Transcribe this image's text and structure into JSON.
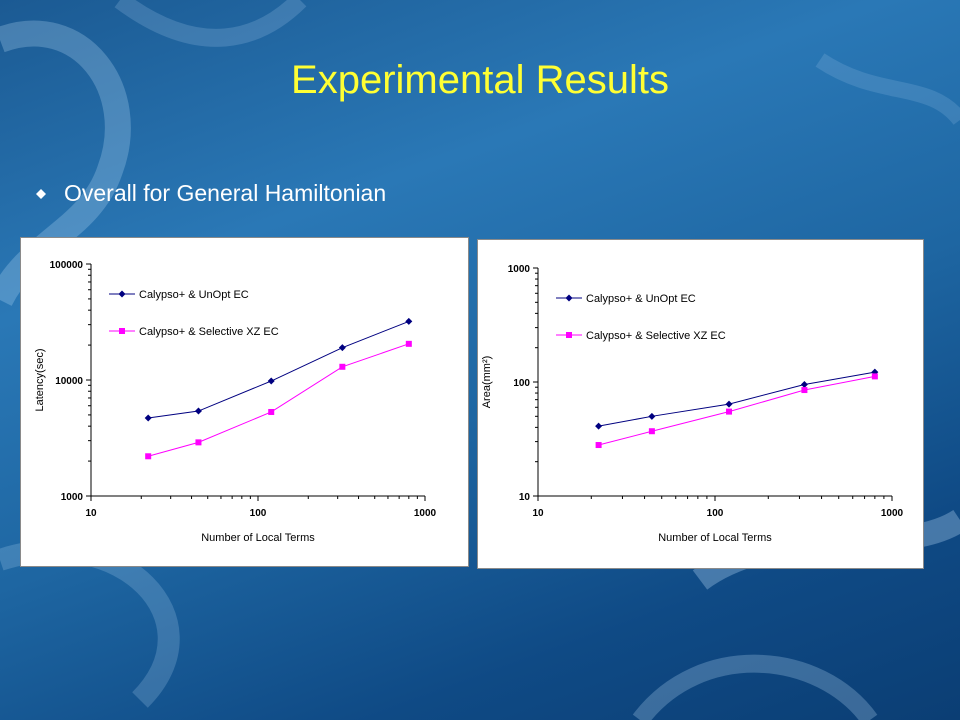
{
  "slide": {
    "title": "Experimental Results",
    "bullet": "Overall for General Hamiltonian"
  },
  "colors": {
    "title": "#ffff33",
    "series_unopt": "#000080",
    "series_selective": "#ff00ff"
  },
  "chart_data": [
    {
      "type": "line",
      "x_scale": "log",
      "y_scale": "log",
      "xlabel": "Number of Local Terms",
      "ylabel": "Latency(sec)",
      "xlim": [
        10,
        1000
      ],
      "ylim": [
        1000,
        100000
      ],
      "x_ticks": [
        "10",
        "100",
        "1000"
      ],
      "y_ticks": [
        "1000",
        "10000",
        "100000"
      ],
      "legend_position": "top-left",
      "grid": false,
      "series": [
        {
          "name": "Calypso+ & UnOpt EC",
          "marker": "diamond",
          "x": [
            22,
            44,
            120,
            320,
            800
          ],
          "values": [
            4700,
            5400,
            9800,
            19000,
            32000
          ]
        },
        {
          "name": "Calypso+ & Selective XZ EC",
          "marker": "square",
          "x": [
            22,
            44,
            120,
            320,
            800
          ],
          "values": [
            2200,
            2900,
            5300,
            13000,
            20500
          ]
        }
      ]
    },
    {
      "type": "line",
      "x_scale": "log",
      "y_scale": "log",
      "xlabel": "Number of Local Terms",
      "ylabel": "Area(mm²)",
      "xlim": [
        10,
        1000
      ],
      "ylim": [
        10,
        1000
      ],
      "x_ticks": [
        "10",
        "100",
        "1000"
      ],
      "y_ticks": [
        "10",
        "100",
        "1000"
      ],
      "legend_position": "top-left",
      "grid": false,
      "series": [
        {
          "name": "Calypso+ & UnOpt EC",
          "marker": "diamond",
          "x": [
            22,
            44,
            120,
            320,
            800
          ],
          "values": [
            41,
            50,
            64,
            95,
            122
          ]
        },
        {
          "name": "Calypso+ & Selective XZ EC",
          "marker": "square",
          "x": [
            22,
            44,
            120,
            320,
            800
          ],
          "values": [
            28,
            37,
            55,
            85,
            112
          ]
        }
      ]
    }
  ]
}
